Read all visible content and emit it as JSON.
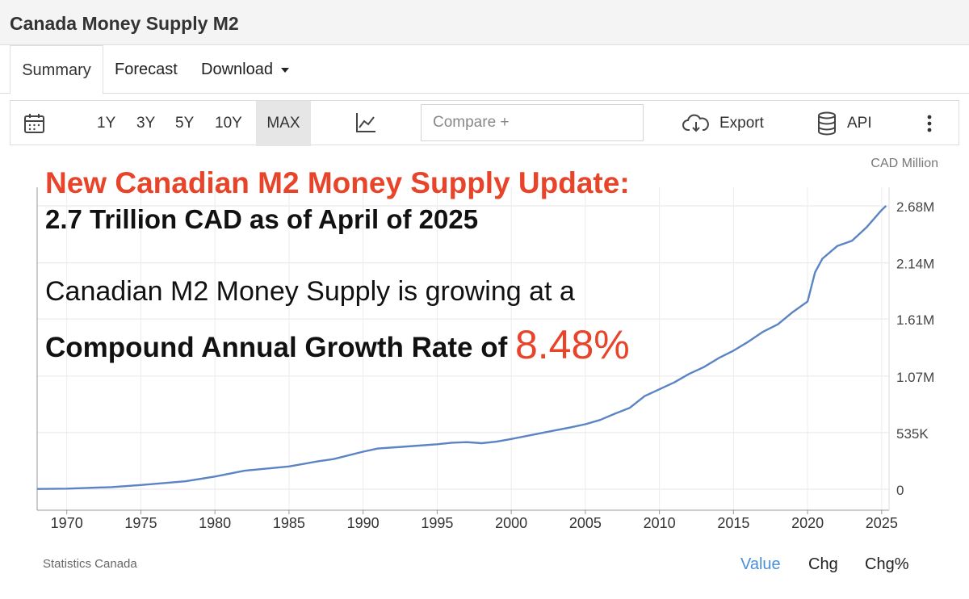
{
  "page_title": "Canada Money Supply M2",
  "tabs": [
    {
      "label": "Summary",
      "active": true
    },
    {
      "label": "Forecast"
    },
    {
      "label": "Download"
    }
  ],
  "toolbar": {
    "calendar_icon": "calendar-icon",
    "ranges": [
      "1Y",
      "3Y",
      "5Y",
      "10Y",
      "MAX"
    ],
    "active_range": "MAX",
    "chart_type_icon": "line-chart-icon",
    "compare_placeholder": "Compare +",
    "export_label": "Export",
    "export_icon": "cloud-download-icon",
    "api_label": "API",
    "api_icon": "database-icon",
    "more_icon": "more-vertical-icon"
  },
  "overlay": {
    "line1": "New Canadian M2 Money Supply Update:",
    "line2": "2.7 Trillion CAD as of April of 2025",
    "line3": "Canadian M2 Money Supply is growing at a",
    "line4_prefix": "Compound Annual Growth Rate of ",
    "line4_value": "8.48%"
  },
  "footer": {
    "source": "Statistics Canada",
    "value_tabs": [
      "Value",
      "Chg",
      "Chg%"
    ],
    "active_value_tab": "Value"
  },
  "colors": {
    "accent_red": "#e8442a",
    "line_blue": "#5b84c4",
    "link_blue": "#4a8fd8"
  },
  "chart_data": {
    "type": "line",
    "unit_label": "CAD Million",
    "x_ticks": [
      "1970",
      "1975",
      "1980",
      "1985",
      "1990",
      "1995",
      "2000",
      "2005",
      "2010",
      "2015",
      "2020",
      "2025"
    ],
    "y_ticks": [
      {
        "value": 0,
        "label": "0"
      },
      {
        "value": 535000,
        "label": "535K"
      },
      {
        "value": 1070000,
        "label": "1.07M"
      },
      {
        "value": 1610000,
        "label": "1.61M"
      },
      {
        "value": 2140000,
        "label": "2.14M"
      },
      {
        "value": 2680000,
        "label": "2.68M"
      }
    ],
    "xlim": [
      1968,
      2025.5
    ],
    "ylim": [
      0,
      2680000
    ],
    "grid": true,
    "series": [
      {
        "points": [
          [
            1968,
            2000
          ],
          [
            1970,
            5000
          ],
          [
            1973,
            20000
          ],
          [
            1975,
            40000
          ],
          [
            1978,
            75000
          ],
          [
            1980,
            120000
          ],
          [
            1982,
            175000
          ],
          [
            1985,
            215000
          ],
          [
            1987,
            265000
          ],
          [
            1988,
            285000
          ],
          [
            1990,
            355000
          ],
          [
            1991,
            385000
          ],
          [
            1993,
            405000
          ],
          [
            1995,
            425000
          ],
          [
            1996,
            440000
          ],
          [
            1997,
            445000
          ],
          [
            1998,
            435000
          ],
          [
            1999,
            450000
          ],
          [
            2000,
            475000
          ],
          [
            2002,
            530000
          ],
          [
            2004,
            585000
          ],
          [
            2005,
            615000
          ],
          [
            2006,
            655000
          ],
          [
            2007,
            715000
          ],
          [
            2008,
            770000
          ],
          [
            2009,
            880000
          ],
          [
            2010,
            945000
          ],
          [
            2011,
            1010000
          ],
          [
            2012,
            1090000
          ],
          [
            2013,
            1155000
          ],
          [
            2014,
            1240000
          ],
          [
            2015,
            1310000
          ],
          [
            2016,
            1395000
          ],
          [
            2017,
            1490000
          ],
          [
            2018,
            1560000
          ],
          [
            2019,
            1675000
          ],
          [
            2020,
            1775000
          ],
          [
            2020.5,
            2050000
          ],
          [
            2021,
            2180000
          ],
          [
            2022,
            2300000
          ],
          [
            2023,
            2350000
          ],
          [
            2024,
            2480000
          ],
          [
            2025,
            2640000
          ],
          [
            2025.3,
            2680000
          ]
        ]
      }
    ]
  }
}
